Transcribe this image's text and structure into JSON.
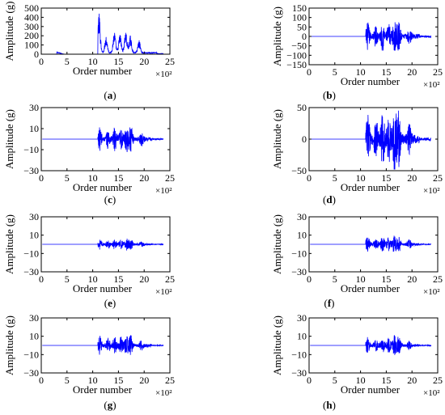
{
  "line_color": "#0000ff",
  "chart_data": [
    {
      "type": "line",
      "caption": "(a)",
      "xlabel": "Order number",
      "ylabel": "Amplitude (g)",
      "x_multiplier": "×10²",
      "xlim": [
        0,
        25
      ],
      "ylim": [
        0,
        500
      ],
      "xticks": [
        "0",
        "5",
        "10",
        "15",
        "20",
        "25"
      ],
      "yticks": [
        "0",
        "100",
        "200",
        "300",
        "400",
        "500"
      ],
      "signal": {
        "pre_level": 0,
        "bump": [
          3,
          25
        ],
        "onset": 11.0,
        "peak": 440,
        "env": 230,
        "end_x": 23.5,
        "noise_floor": 20
      }
    },
    {
      "type": "line",
      "caption": "(b)",
      "xlabel": "Order number",
      "ylabel": "Amplitude (g)",
      "x_multiplier": "×10²",
      "xlim": [
        0,
        25
      ],
      "ylim": [
        -150,
        150
      ],
      "xticks": [
        "0",
        "5",
        "10",
        "15",
        "20",
        "25"
      ],
      "yticks": [
        "-150",
        "-100",
        "-50",
        "0",
        "50",
        "100",
        "150"
      ],
      "signal": {
        "pre_level": 0,
        "onset": 11.0,
        "peak": 75,
        "env": 65,
        "end_x": 23.5
      }
    },
    {
      "type": "line",
      "caption": "(c)",
      "xlabel": "Order number",
      "ylabel": "Amplitude (g)",
      "x_multiplier": "×10²",
      "xlim": [
        0,
        25
      ],
      "ylim": [
        -30,
        30
      ],
      "xticks": [
        "0",
        "5",
        "10",
        "15",
        "20",
        "25"
      ],
      "yticks": [
        "-30",
        "-10",
        "10",
        "30"
      ],
      "signal": {
        "pre_level": 0,
        "onset": 11.0,
        "peak": 20,
        "env": 10,
        "end_x": 23.5
      }
    },
    {
      "type": "line",
      "caption": "(d)",
      "xlabel": "Order number",
      "ylabel": "Amplitude (g)",
      "x_multiplier": "×10²",
      "xlim": [
        0,
        25
      ],
      "ylim": [
        -50,
        50
      ],
      "xticks": [
        "0",
        "5",
        "10",
        "15",
        "20",
        "25"
      ],
      "yticks": [
        "-50",
        "0",
        "50"
      ],
      "signal": {
        "pre_level": 0,
        "onset": 11.0,
        "peak": 48,
        "env": 38,
        "end_x": 23.5
      }
    },
    {
      "type": "line",
      "caption": "(e)",
      "xlabel": "Order number",
      "ylabel": "Amplitude (g)",
      "x_multiplier": "×10²",
      "xlim": [
        0,
        25
      ],
      "ylim": [
        -30,
        30
      ],
      "xticks": [
        "0",
        "5",
        "10",
        "15",
        "20",
        "25"
      ],
      "yticks": [
        "-30",
        "-10",
        "10",
        "30"
      ],
      "signal": {
        "pre_level": 0,
        "onset": 11.0,
        "peak": 7,
        "env": 5,
        "end_x": 23.5
      }
    },
    {
      "type": "line",
      "caption": "(f)",
      "xlabel": "Order number",
      "ylabel": "Amplitude (g)",
      "x_multiplier": "×10²",
      "xlim": [
        0,
        25
      ],
      "ylim": [
        -30,
        30
      ],
      "xticks": [
        "0",
        "5",
        "10",
        "15",
        "20",
        "25"
      ],
      "yticks": [
        "-30",
        "-10",
        "10",
        "30"
      ],
      "signal": {
        "pre_level": 0,
        "onset": 11.0,
        "peak": 15,
        "env": 8,
        "end_x": 23.5
      }
    },
    {
      "type": "line",
      "caption": "(g)",
      "xlabel": "Order number",
      "ylabel": "Amplitude (g)",
      "x_multiplier": "×10²",
      "xlim": [
        0,
        25
      ],
      "ylim": [
        -30,
        30
      ],
      "xticks": [
        "0",
        "5",
        "10",
        "15",
        "20",
        "25"
      ],
      "yticks": [
        "-30",
        "-10",
        "10",
        "30"
      ],
      "signal": {
        "pre_level": 0,
        "onset": 11.0,
        "peak": 16,
        "env": 9,
        "end_x": 23.5
      }
    },
    {
      "type": "line",
      "caption": "(h)",
      "xlabel": "Order number",
      "ylabel": "Amplitude (g)",
      "x_multiplier": "×10²",
      "xlim": [
        0,
        25
      ],
      "ylim": [
        -30,
        30
      ],
      "xticks": [
        "0",
        "5",
        "10",
        "15",
        "20",
        "25"
      ],
      "yticks": [
        "-30",
        "-10",
        "10",
        "30"
      ],
      "signal": {
        "pre_level": 0,
        "onset": 11.0,
        "peak": 15,
        "env": 8,
        "end_x": 23.5
      }
    }
  ]
}
